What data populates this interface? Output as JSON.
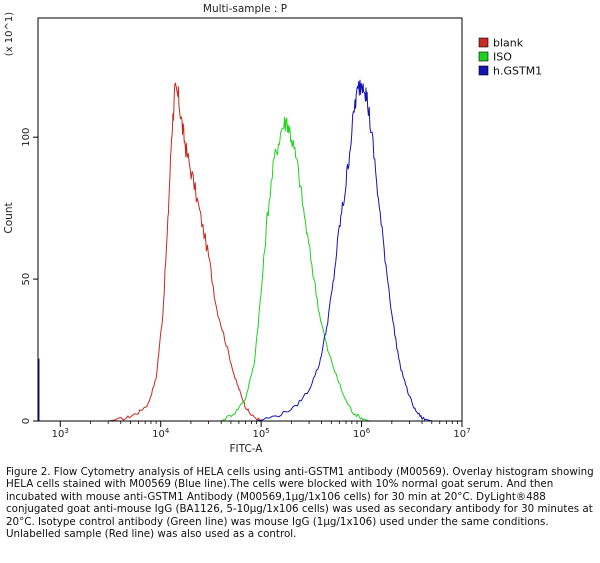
{
  "chart_data": {
    "type": "line",
    "title": "Multi-sample : P",
    "xlabel": "FITC-A",
    "ylabel": "Count",
    "y_multiplier": "(x 10^1)",
    "x_scale": "log",
    "xlim": [
      600,
      10000000
    ],
    "ylim": [
      0,
      142
    ],
    "x_ticks": [
      {
        "value": 1000,
        "base": "10",
        "exp": "3"
      },
      {
        "value": 10000,
        "base": "10",
        "exp": "4"
      },
      {
        "value": 100000,
        "base": "10",
        "exp": "5"
      },
      {
        "value": 1000000,
        "base": "10",
        "exp": "6"
      },
      {
        "value": 10000000,
        "base": "10",
        "exp": "7"
      }
    ],
    "y_ticks": [
      {
        "value": 0,
        "label": "0"
      },
      {
        "value": 50,
        "label": "50"
      },
      {
        "value": 100,
        "label": "100"
      }
    ],
    "legend_position": "top-right",
    "series": [
      {
        "name": "blank",
        "color": "#c8281e",
        "points": [
          [
            3000,
            0
          ],
          [
            4500,
            1
          ],
          [
            6000,
            3
          ],
          [
            7500,
            6
          ],
          [
            9000,
            15
          ],
          [
            10500,
            38
          ],
          [
            11800,
            70
          ],
          [
            12800,
            100
          ],
          [
            13800,
            116
          ],
          [
            15000,
            114
          ],
          [
            16500,
            103
          ],
          [
            18000,
            95
          ],
          [
            21000,
            85
          ],
          [
            25000,
            72
          ],
          [
            30000,
            58
          ],
          [
            36000,
            40
          ],
          [
            45000,
            27
          ],
          [
            55000,
            15
          ],
          [
            62000,
            10
          ],
          [
            70000,
            5
          ],
          [
            80000,
            2
          ],
          [
            100000,
            0
          ]
        ]
      },
      {
        "name": "ISO",
        "color": "#1fd21f",
        "points": [
          [
            40000,
            0
          ],
          [
            55000,
            3
          ],
          [
            70000,
            8
          ],
          [
            85000,
            20
          ],
          [
            100000,
            45
          ],
          [
            115000,
            72
          ],
          [
            135000,
            92
          ],
          [
            160000,
            103
          ],
          [
            180000,
            106
          ],
          [
            200000,
            100
          ],
          [
            230000,
            90
          ],
          [
            270000,
            72
          ],
          [
            320000,
            55
          ],
          [
            380000,
            38
          ],
          [
            460000,
            25
          ],
          [
            560000,
            16
          ],
          [
            680000,
            8
          ],
          [
            820000,
            3
          ],
          [
            1000000,
            1
          ],
          [
            1200000,
            0
          ]
        ]
      },
      {
        "name": "h.GSTM1",
        "color": "#1414b4",
        "points": [
          [
            90000,
            0
          ],
          [
            150000,
            2
          ],
          [
            220000,
            5
          ],
          [
            300000,
            11
          ],
          [
            380000,
            20
          ],
          [
            450000,
            33
          ],
          [
            520000,
            48
          ],
          [
            600000,
            68
          ],
          [
            680000,
            80
          ],
          [
            760000,
            95
          ],
          [
            860000,
            112
          ],
          [
            950000,
            118
          ],
          [
            1050000,
            120
          ],
          [
            1150000,
            112
          ],
          [
            1300000,
            97
          ],
          [
            1500000,
            75
          ],
          [
            1750000,
            55
          ],
          [
            2050000,
            35
          ],
          [
            2400000,
            20
          ],
          [
            2900000,
            10
          ],
          [
            3400000,
            4
          ],
          [
            4000000,
            1
          ],
          [
            5000000,
            0
          ]
        ]
      }
    ]
  },
  "caption": "Figure 2. Flow Cytometry analysis of HELA cells using anti-GSTM1 antibody (M00569). Overlay histogram showing HELA cells stained with M00569 (Blue line).The cells were blocked with 10% normal goat serum. And then incubated with mouse anti-GSTM1 Antibody (M00569,1µg/1x106 cells) for 30 min at 20°C. DyLight®488 conjugated goat anti-mouse IgG (BA1126, 5-10µg/1x106 cells) was used as secondary antibody for 30 minutes at 20°C. Isotype control antibody (Green line) was mouse IgG (1µg/1x106) used under the same conditions. Unlabelled sample (Red line) was also used as a control."
}
